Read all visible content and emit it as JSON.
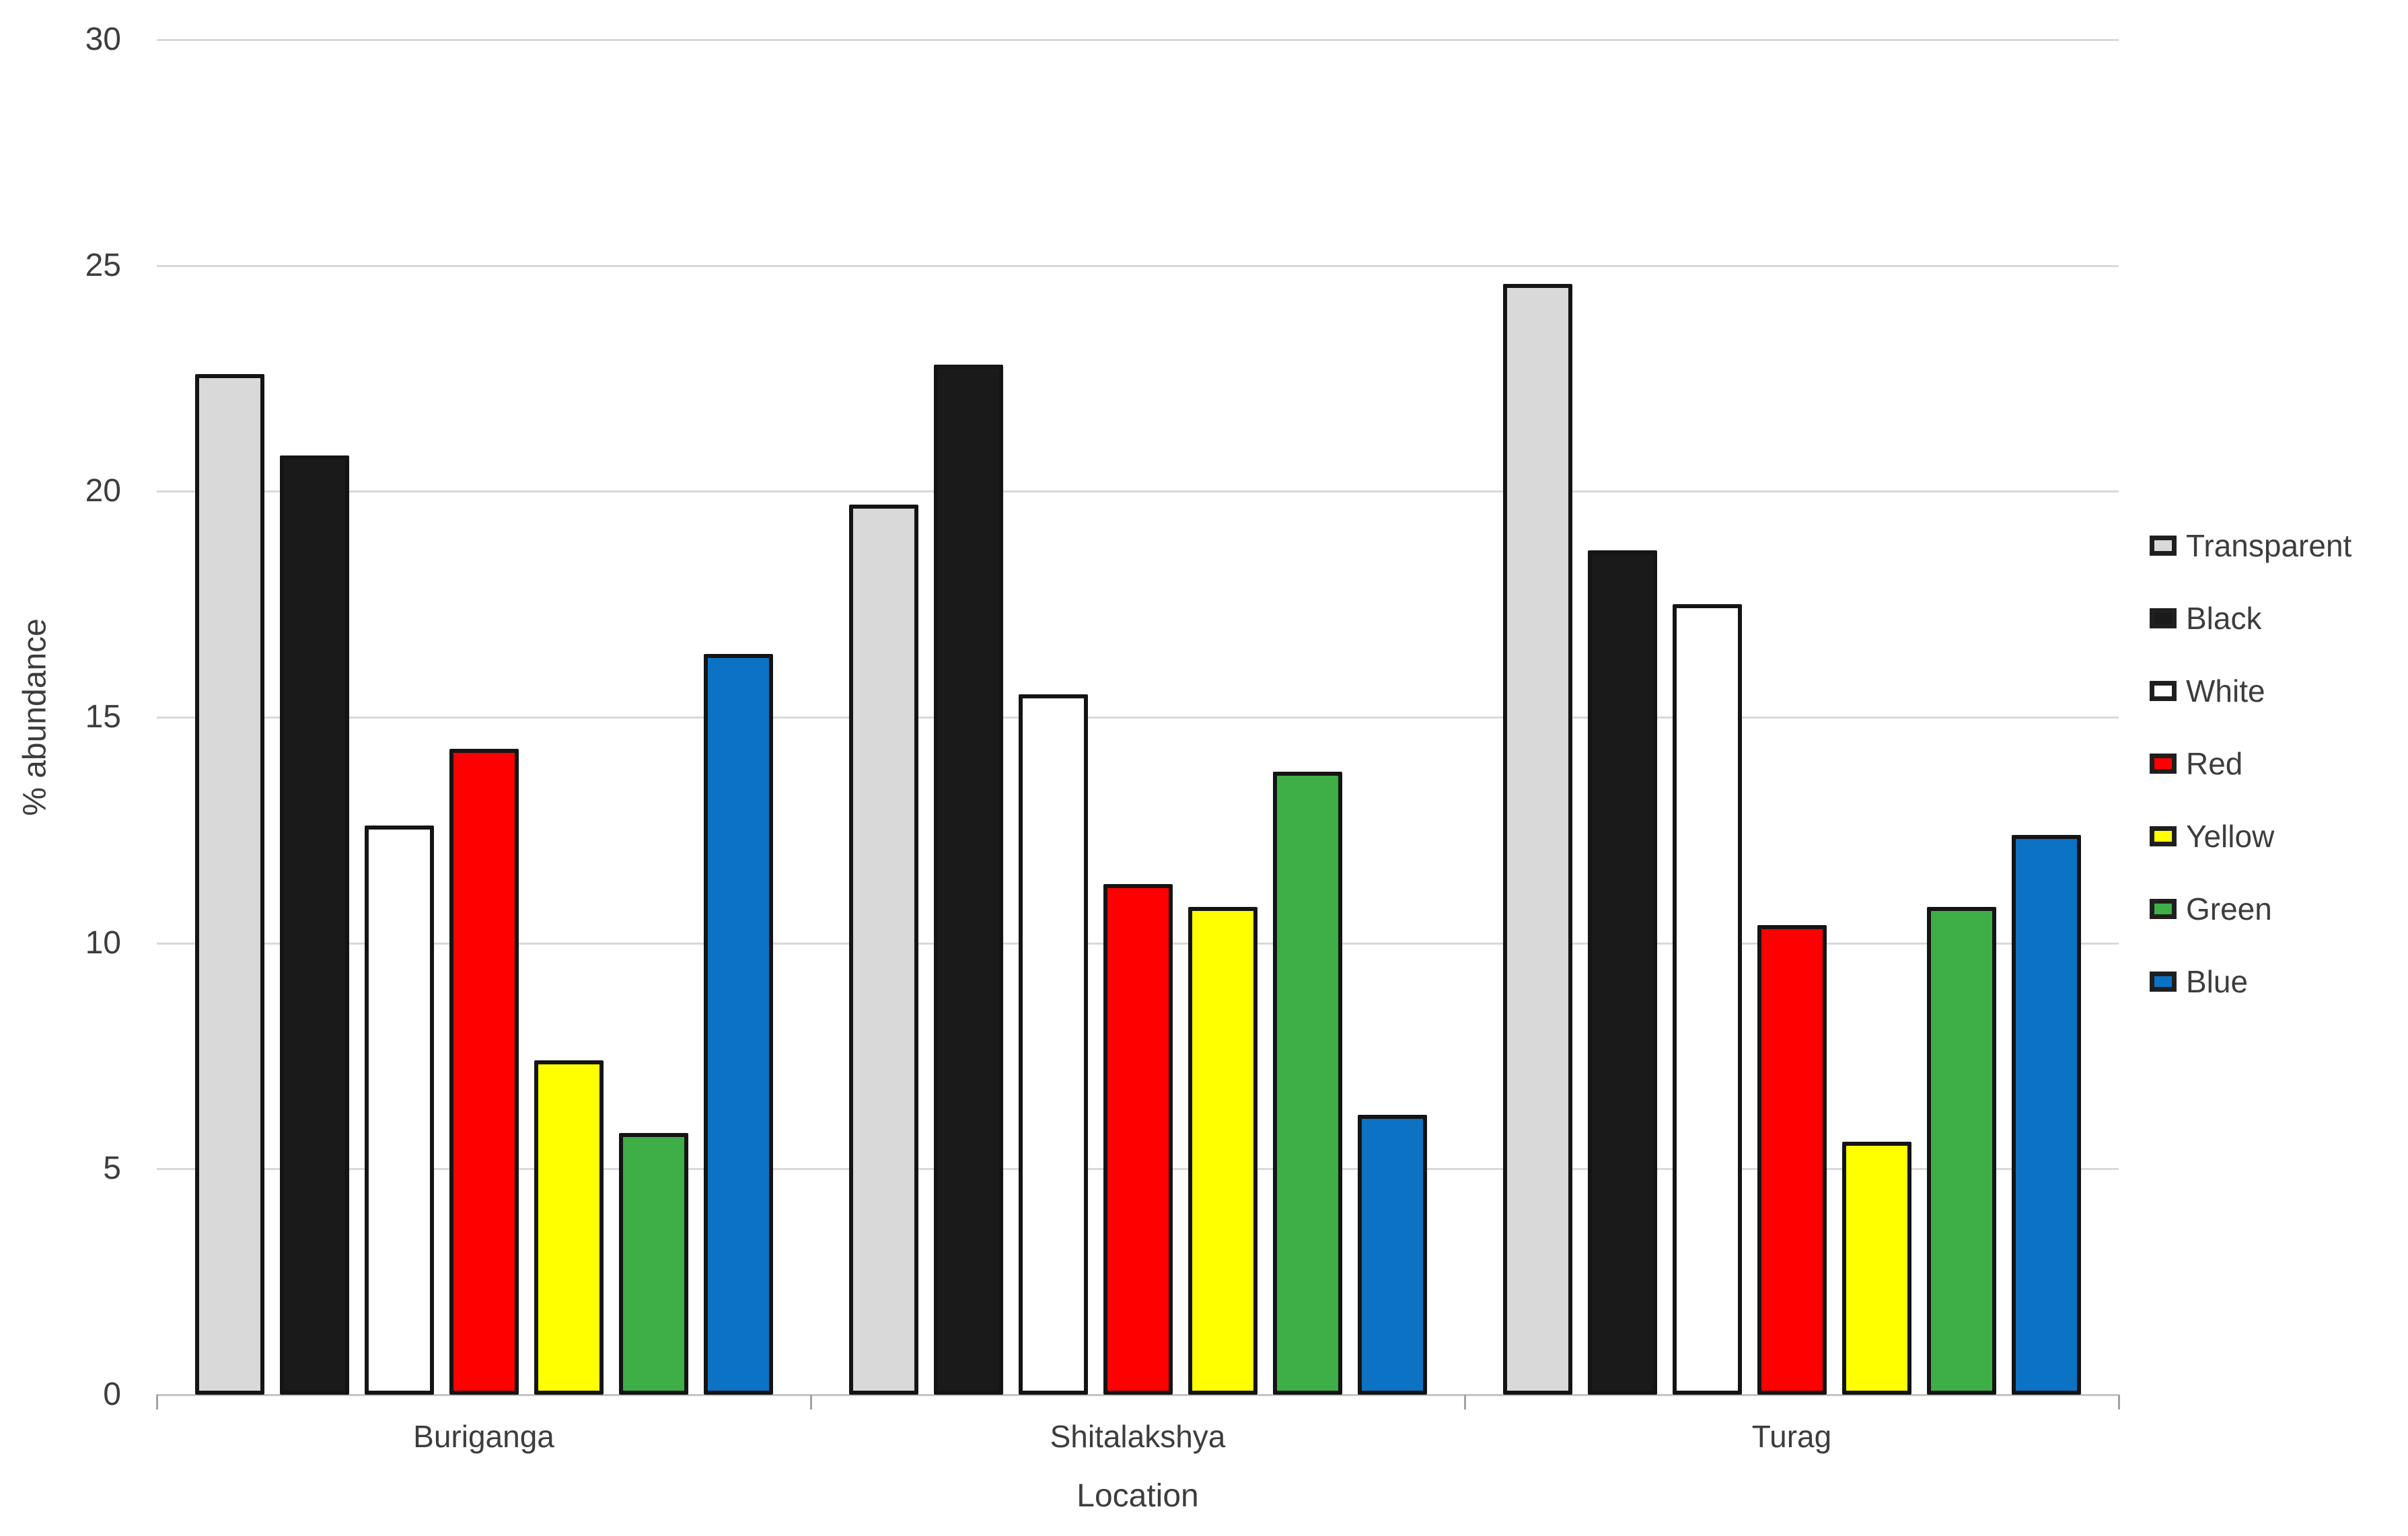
{
  "chart_data": {
    "type": "bar",
    "title": "",
    "categories": [
      "Buriganga",
      "Shitalakshya",
      "Turag"
    ],
    "series": [
      {
        "name": "Transparent",
        "color": "#D9D9D9",
        "values": [
          22.6,
          19.7,
          24.6
        ]
      },
      {
        "name": "Black",
        "color": "#1A1A1A",
        "values": [
          20.8,
          22.8,
          18.7
        ]
      },
      {
        "name": "White",
        "color": "#FFFFFF",
        "values": [
          12.6,
          15.5,
          17.5
        ]
      },
      {
        "name": "Red",
        "color": "#FF0000",
        "values": [
          14.3,
          11.3,
          10.4
        ]
      },
      {
        "name": "Yellow",
        "color": "#FFFF00",
        "values": [
          7.4,
          10.8,
          5.6
        ]
      },
      {
        "name": "Green",
        "color": "#3EAE46",
        "values": [
          5.8,
          13.8,
          10.8
        ]
      },
      {
        "name": "Blue",
        "color": "#0B72C4",
        "values": [
          16.4,
          6.2,
          12.4
        ]
      }
    ],
    "xlabel": "Location",
    "ylabel": "% abundance",
    "ylim": [
      0,
      30
    ],
    "yticks": [
      0,
      5,
      10,
      15,
      20,
      25,
      30
    ],
    "grid": true,
    "legend_position": "right",
    "colors": {
      "gridline": "#D9D9D9",
      "axis_line": "#C4C4C4",
      "text": "#3D3D3D",
      "bar_border": "#141414"
    }
  }
}
